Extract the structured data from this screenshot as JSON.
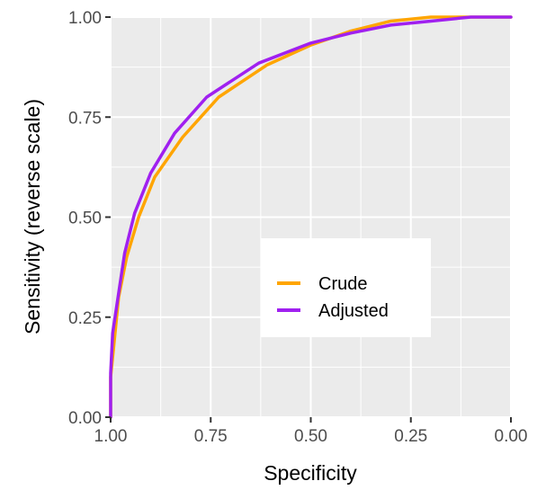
{
  "chart_data": {
    "type": "line",
    "title": "",
    "xlabel": "Specificity",
    "ylabel": "Sensitivity (reverse scale)",
    "xlim": [
      1.0,
      0.0
    ],
    "ylim": [
      0.0,
      1.0
    ],
    "x_reversed": true,
    "x_ticks": [
      "1.00",
      "0.75",
      "0.50",
      "0.25",
      "0.00"
    ],
    "y_ticks": [
      "0.00",
      "0.25",
      "0.50",
      "0.75",
      "1.00"
    ],
    "x_tick_values": [
      1.0,
      0.75,
      0.5,
      0.25,
      0.0
    ],
    "y_tick_values": [
      0.0,
      0.25,
      0.5,
      0.75,
      1.0
    ],
    "grid": true,
    "legend_position": "center-right",
    "series": [
      {
        "name": "Crude",
        "color": "#FFA500",
        "points": [
          [
            1.0,
            0.0
          ],
          [
            1.0,
            0.1
          ],
          [
            0.99,
            0.2
          ],
          [
            0.98,
            0.3
          ],
          [
            0.96,
            0.4
          ],
          [
            0.93,
            0.5
          ],
          [
            0.89,
            0.6
          ],
          [
            0.82,
            0.7
          ],
          [
            0.73,
            0.8
          ],
          [
            0.61,
            0.88
          ],
          [
            0.5,
            0.93
          ],
          [
            0.4,
            0.965
          ],
          [
            0.3,
            0.99
          ],
          [
            0.2,
            1.0
          ],
          [
            0.1,
            1.0
          ],
          [
            0.0,
            1.0
          ]
        ]
      },
      {
        "name": "Adjusted",
        "color": "#A020F0",
        "points": [
          [
            1.0,
            0.0
          ],
          [
            1.0,
            0.11
          ],
          [
            0.995,
            0.21
          ],
          [
            0.98,
            0.31
          ],
          [
            0.965,
            0.41
          ],
          [
            0.94,
            0.51
          ],
          [
            0.9,
            0.61
          ],
          [
            0.84,
            0.71
          ],
          [
            0.76,
            0.8
          ],
          [
            0.63,
            0.885
          ],
          [
            0.5,
            0.935
          ],
          [
            0.4,
            0.96
          ],
          [
            0.3,
            0.98
          ],
          [
            0.2,
            0.99
          ],
          [
            0.1,
            1.0
          ],
          [
            0.0,
            1.0
          ]
        ]
      }
    ]
  }
}
